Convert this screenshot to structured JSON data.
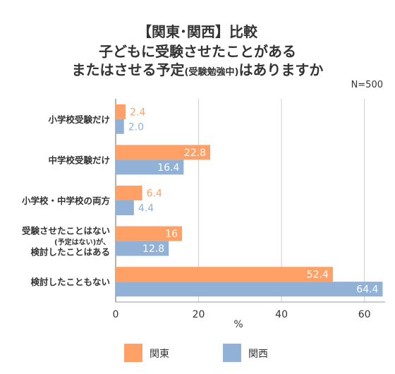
{
  "title": {
    "line1": "【関東･関西】比較",
    "line2": "子どもに受験させたことがある",
    "line3_a": "またはさせる予定",
    "line3_b": "(受験勉強中)",
    "line3_c": "はありますか"
  },
  "sample_note": "N=500",
  "colors": {
    "kanto": "#FFA066",
    "kansai": "#91B2D6",
    "axis": "#999999",
    "grid": "#cccccc"
  },
  "chart_data": {
    "type": "bar",
    "orientation": "horizontal",
    "categories": [
      [
        "小学校受験だけ"
      ],
      [
        "中学校受験だけ"
      ],
      [
        "小学校・中学校の両方"
      ],
      [
        "受験させたことはない",
        "(予定はない)が、",
        "検討したことはある"
      ],
      [
        "検討したこともない"
      ]
    ],
    "series": [
      {
        "name": "関東",
        "values": [
          2.4,
          22.8,
          6.4,
          16,
          52.4
        ],
        "labels": [
          "2.4",
          "22.8",
          "6.4",
          "16",
          "52.4"
        ]
      },
      {
        "name": "関西",
        "values": [
          2.0,
          16.4,
          4.4,
          12.8,
          64.4
        ],
        "labels": [
          "2.0",
          "16.4",
          "4.4",
          "12.8",
          "64.4"
        ]
      }
    ],
    "xlim": [
      0,
      65
    ],
    "xticks": [
      0,
      20,
      40,
      60
    ],
    "xlabel": "%",
    "grid": true,
    "legend": "bottom"
  }
}
